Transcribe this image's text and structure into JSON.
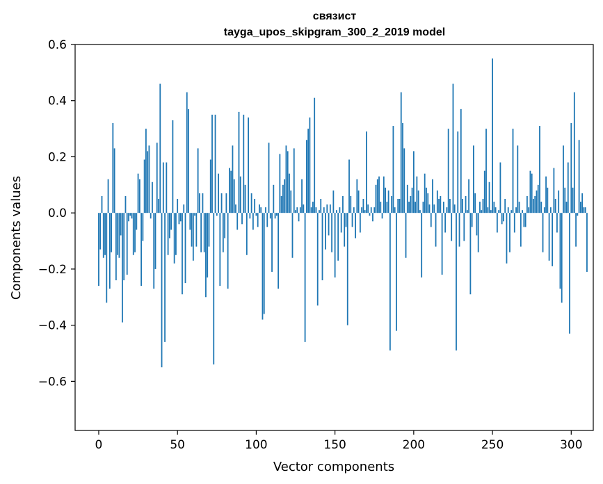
{
  "chart_data": {
    "type": "bar",
    "title": "связист",
    "subtitle": "tayga_upos_skipgram_300_2_2019 model",
    "xlabel": "Vector components",
    "ylabel": "Components values",
    "xlim": [
      -15,
      314
    ],
    "ylim": [
      -0.775,
      0.6
    ],
    "xticks": [
      0,
      50,
      100,
      150,
      200,
      250,
      300
    ],
    "xtick_labels": [
      "0",
      "50",
      "100",
      "150",
      "200",
      "250",
      "300"
    ],
    "yticks": [
      -0.6,
      -0.4,
      -0.2,
      0.0,
      0.2,
      0.4,
      0.6
    ],
    "ytick_labels": [
      "−0.6",
      "−0.4",
      "−0.2",
      "0.0",
      "0.2",
      "0.4",
      "0.6"
    ],
    "bar_color": "#1f77b4",
    "values": [
      -0.26,
      -0.13,
      0.06,
      -0.16,
      -0.15,
      -0.32,
      0.12,
      -0.27,
      -0.14,
      0.32,
      0.23,
      -0.24,
      -0.15,
      -0.16,
      -0.08,
      -0.39,
      -0.24,
      0.06,
      -0.22,
      -0.03,
      -0.01,
      -0.02,
      -0.15,
      -0.14,
      -0.06,
      0.14,
      0.12,
      -0.26,
      -0.1,
      0.19,
      0.3,
      0.22,
      0.24,
      -0.02,
      0.11,
      -0.27,
      -0.2,
      0.25,
      0.05,
      0.46,
      -0.55,
      0.18,
      -0.46,
      0.18,
      -0.15,
      -0.09,
      -0.06,
      0.33,
      -0.18,
      -0.15,
      0.05,
      -0.04,
      -0.03,
      -0.29,
      0.03,
      -0.25,
      0.43,
      0.37,
      -0.06,
      -0.12,
      -0.17,
      -0.01,
      -0.12,
      0.23,
      0.07,
      -0.14,
      0.07,
      -0.14,
      -0.3,
      -0.23,
      -0.12,
      0.19,
      0.35,
      -0.54,
      0.35,
      -0.01,
      0.14,
      -0.26,
      0.07,
      -0.14,
      -0.09,
      0.07,
      -0.27,
      0.16,
      0.15,
      0.24,
      0.12,
      0.03,
      -0.06,
      0.36,
      0.13,
      -0.04,
      0.35,
      0.1,
      -0.15,
      0.34,
      -0.02,
      0.07,
      -0.06,
      0.05,
      -0.01,
      -0.05,
      0.03,
      0.02,
      -0.38,
      -0.36,
      0.02,
      -0.05,
      0.25,
      -0.02,
      -0.21,
      0.1,
      -0.02,
      -0.01,
      -0.27,
      0.21,
      0.06,
      0.1,
      0.12,
      0.24,
      0.22,
      0.14,
      0.08,
      -0.16,
      0.23,
      0.01,
      0.02,
      -0.03,
      0.02,
      0.12,
      0.03,
      -0.46,
      0.26,
      0.3,
      0.34,
      0.02,
      0.04,
      0.41,
      0.02,
      -0.33,
      0.01,
      0.05,
      -0.24,
      0.02,
      -0.13,
      0.03,
      -0.08,
      0.03,
      -0.14,
      0.08,
      -0.23,
      0.01,
      -0.17,
      0.02,
      -0.07,
      0.06,
      -0.12,
      -0.05,
      -0.4,
      0.19,
      0.06,
      -0.05,
      0.02,
      -0.09,
      0.12,
      0.08,
      -0.07,
      0.02,
      0.05,
      0.01,
      0.29,
      0.03,
      -0.01,
      0.02,
      -0.03,
      0.02,
      0.1,
      0.12,
      0.13,
      0.04,
      -0.02,
      0.13,
      0.09,
      0.04,
      0.08,
      -0.49,
      0.06,
      0.31,
      0.02,
      -0.42,
      0.05,
      0.05,
      0.43,
      0.32,
      0.23,
      -0.16,
      0.1,
      0.04,
      0.06,
      0.09,
      0.22,
      0.04,
      0.13,
      0.08,
      0.01,
      -0.23,
      0.04,
      0.14,
      0.09,
      0.07,
      0.03,
      -0.05,
      0.12,
      0.03,
      -0.12,
      0.08,
      0.05,
      0.06,
      -0.22,
      0.04,
      -0.07,
      0.02,
      0.3,
      0.05,
      -0.1,
      0.46,
      0.03,
      -0.49,
      0.29,
      -0.12,
      0.37,
      0.05,
      -0.1,
      0.06,
      0.01,
      0.12,
      -0.29,
      -0.05,
      0.24,
      0.07,
      -0.08,
      -0.14,
      0.04,
      0.01,
      0.05,
      0.15,
      0.3,
      0.02,
      0.11,
      0.01,
      0.55,
      0.04,
      0.02,
      -0.07,
      0.01,
      0.18,
      -0.04,
      -0.03,
      0.05,
      -0.18,
      0.02,
      -0.14,
      0.01,
      0.3,
      -0.07,
      0.02,
      0.24,
      0.04,
      -0.12,
      0.01,
      -0.05,
      -0.05,
      0.06,
      0.02,
      0.15,
      0.14,
      0.05,
      0.06,
      0.08,
      0.1,
      0.31,
      0.04,
      -0.14,
      0.02,
      0.13,
      0.09,
      -0.17,
      0.02,
      -0.19,
      0.16,
      0.05,
      -0.07,
      0.08,
      -0.27,
      -0.32,
      0.24,
      0.09,
      0.04,
      0.18,
      -0.43,
      0.32,
      0.09,
      0.43,
      -0.12,
      -0.01,
      0.26,
      0.04,
      0.07,
      0.02,
      0.02,
      -0.21
    ]
  }
}
